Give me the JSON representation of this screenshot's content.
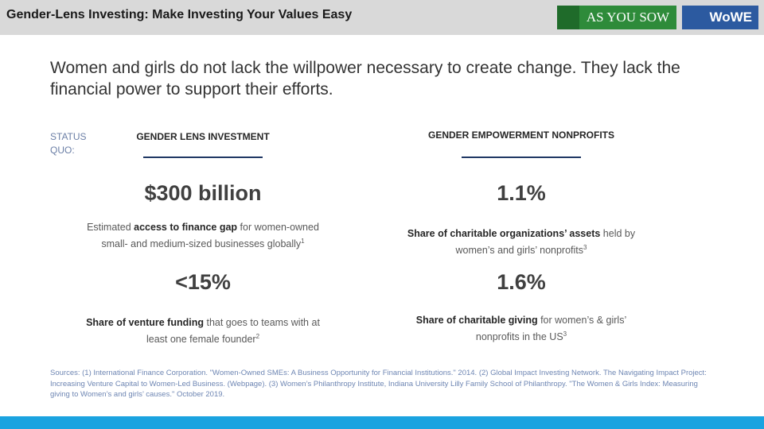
{
  "header": {
    "title": "Gender-Lens Investing: Make Investing Your Values Easy",
    "logos": [
      "AS YOU SOW",
      "WoWE"
    ]
  },
  "headline": "Women and girls do not lack the willpower necessary to create change. They lack the financial power to support their efforts.",
  "status_label": "STATUS QUO:",
  "columns": [
    {
      "heading": "GENDER LENS INVESTMENT",
      "stats": [
        {
          "value": "$300 billion",
          "description": [
            {
              "text": "Estimated ",
              "bold": false
            },
            {
              "text": "access to finance gap",
              "bold": true
            },
            {
              "text": " for women-owned small- and medium-sized businesses globally",
              "bold": false
            }
          ],
          "note": "1"
        },
        {
          "value": "<15%",
          "description": [
            {
              "text": "Share of venture funding",
              "bold": true
            },
            {
              "text": " that goes to teams with at least one female founder",
              "bold": false
            }
          ],
          "note": "2"
        }
      ]
    },
    {
      "heading": "GENDER EMPOWERMENT NONPROFITS",
      "stats": [
        {
          "value": "1.1%",
          "description": [
            {
              "text": "Share of charitable organizations’ assets",
              "bold": true
            },
            {
              "text": " held by women’s and girls’ nonprofits",
              "bold": false
            }
          ],
          "note": "3"
        },
        {
          "value": "1.6%",
          "description": [
            {
              "text": "Share of charitable giving",
              "bold": true
            },
            {
              "text": " for women’s & girls’ nonprofits in the US",
              "bold": false
            }
          ],
          "note": "3"
        }
      ]
    }
  ],
  "sources": "Sources: (1) International Finance Corporation. \"Women-Owned SMEs: A Business Opportunity for Financial Institutions.\" 2014. (2) Global Impact Investing Network. The Navigating Impact Project: Increasing Venture Capital to Women-Led Business. (Webpage). (3) Women’s Philanthropy Institute, Indiana University Lilly Family School of Philanthropy. \"The Women & Girls Index: Measuring giving to Women’s and girls’ causes.\" October 2019."
}
